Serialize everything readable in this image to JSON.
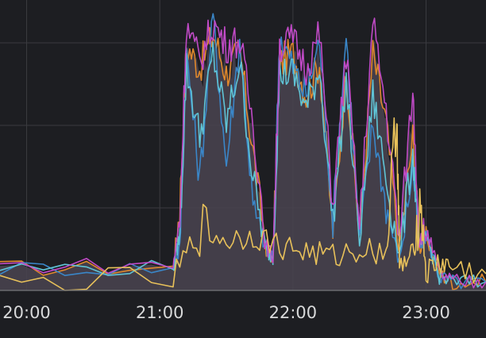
{
  "chart_data": {
    "type": "line",
    "xlabel": "",
    "ylabel": "",
    "x_range_hours": [
      19.8,
      23.45
    ],
    "x_ticks": [
      {
        "value": 20,
        "label": "20:00"
      },
      {
        "value": 21,
        "label": "21:00"
      },
      {
        "value": 22,
        "label": "22:00"
      },
      {
        "value": 23,
        "label": "23:00"
      }
    ],
    "ylim": [
      0,
      100
    ],
    "grid": true,
    "legend": "none",
    "fill_area": true,
    "colors": {
      "background": "#1d1e22",
      "grid": "#3a3b40",
      "axis": "#6b6c70",
      "fill": "#4a4450",
      "orange": "#e0882c",
      "blue": "#3a86c8",
      "cyan": "#5fc4d6",
      "magenta": "#c04ac6",
      "yellow": "#e8c15a"
    },
    "series": [
      {
        "color": "orange",
        "x": [
          19.8,
          21.1,
          21.15,
          21.2,
          21.3,
          21.4,
          21.5,
          21.6,
          21.7,
          21.8,
          21.85,
          21.9,
          22.0,
          22.1,
          22.2,
          22.3,
          22.4,
          22.5,
          22.6,
          22.7,
          22.8,
          22.9,
          22.95,
          23.0,
          23.1,
          23.2,
          23.45
        ],
        "y": [
          8,
          8,
          30,
          88,
          80,
          92,
          78,
          86,
          50,
          15,
          12,
          82,
          85,
          70,
          82,
          20,
          80,
          20,
          85,
          60,
          15,
          55,
          15,
          20,
          6,
          3,
          3
        ]
      },
      {
        "color": "blue",
        "x": [
          19.8,
          21.1,
          21.15,
          21.2,
          21.3,
          21.4,
          21.5,
          21.6,
          21.7,
          21.8,
          21.85,
          21.9,
          22.0,
          22.1,
          22.2,
          22.3,
          22.4,
          22.5,
          22.6,
          22.7,
          22.8,
          22.9,
          22.95,
          23.0,
          23.1,
          23.2,
          23.45
        ],
        "y": [
          8,
          8,
          15,
          85,
          40,
          98,
          45,
          90,
          30,
          14,
          12,
          92,
          80,
          70,
          90,
          25,
          92,
          18,
          60,
          30,
          10,
          45,
          15,
          20,
          5,
          3,
          3
        ]
      },
      {
        "color": "cyan",
        "x": [
          19.8,
          21.1,
          21.15,
          21.2,
          21.3,
          21.4,
          21.5,
          21.6,
          21.7,
          21.8,
          21.85,
          21.9,
          22.0,
          22.1,
          22.2,
          22.3,
          22.4,
          22.5,
          22.6,
          22.7,
          22.8,
          22.9,
          22.95,
          23.0,
          23.1,
          23.2,
          23.45
        ],
        "y": [
          8,
          8,
          20,
          80,
          55,
          85,
          60,
          82,
          40,
          14,
          12,
          78,
          78,
          65,
          80,
          25,
          75,
          18,
          70,
          40,
          12,
          50,
          15,
          20,
          5,
          3,
          3
        ]
      },
      {
        "color": "magenta",
        "x": [
          19.8,
          21.1,
          21.15,
          21.2,
          21.3,
          21.4,
          21.5,
          21.6,
          21.7,
          21.8,
          21.85,
          21.9,
          22.0,
          22.1,
          22.2,
          22.3,
          22.4,
          22.5,
          22.6,
          22.7,
          22.8,
          22.9,
          22.95,
          23.0,
          23.1,
          23.2,
          23.45
        ],
        "y": [
          9,
          9,
          25,
          95,
          82,
          96,
          88,
          90,
          60,
          16,
          12,
          88,
          90,
          80,
          92,
          30,
          85,
          22,
          96,
          65,
          18,
          72,
          18,
          22,
          6,
          3,
          3
        ]
      },
      {
        "color": "yellow",
        "x": [
          19.8,
          21.1,
          21.3,
          21.5,
          21.7,
          21.9,
          22.1,
          22.3,
          22.5,
          22.7,
          22.78,
          22.8,
          22.9,
          22.96,
          23.0,
          23.1,
          23.2,
          23.45
        ],
        "y": [
          2,
          4,
          22,
          18,
          20,
          16,
          14,
          12,
          15,
          14,
          65,
          8,
          12,
          32,
          6,
          10,
          8,
          6
        ]
      }
    ]
  }
}
